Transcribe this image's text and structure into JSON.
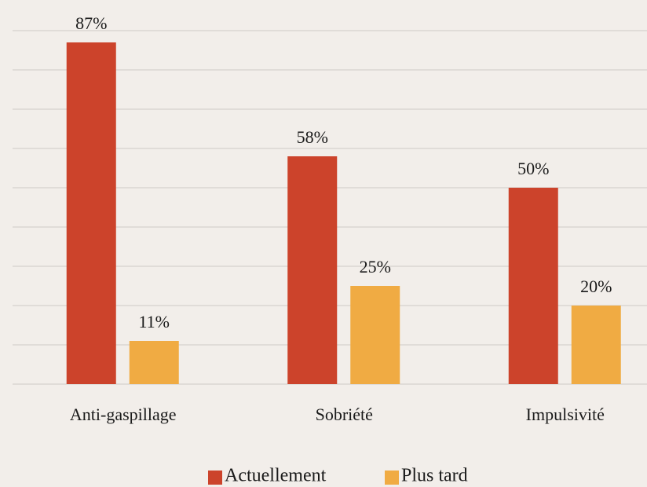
{
  "chart_data": {
    "type": "bar",
    "categories": [
      "Anti-gaspillage",
      "Sobriété",
      "Impulsivité"
    ],
    "series": [
      {
        "name": "Actuellement",
        "color": "#cc432b",
        "values": [
          87,
          58,
          50
        ],
        "value_labels": [
          "87%",
          "58%",
          "50%"
        ]
      },
      {
        "name": "Plus tard",
        "color": "#f0ab43",
        "values": [
          11,
          25,
          20
        ],
        "value_labels": [
          "11%",
          "25%",
          "20%"
        ]
      }
    ],
    "ylim": [
      0,
      90
    ],
    "yticks": [
      0,
      10,
      20,
      30,
      40,
      50,
      60,
      70,
      80,
      90
    ],
    "grid": true,
    "legend": "bottom"
  }
}
